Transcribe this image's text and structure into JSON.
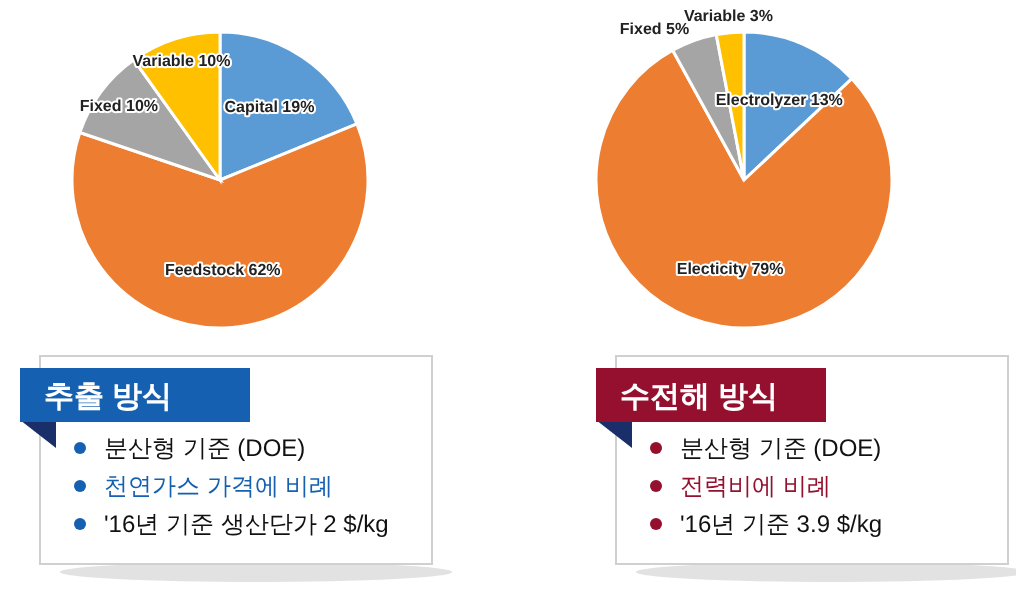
{
  "chart_data": [
    {
      "type": "pie",
      "categories": [
        "Capital",
        "Feedstock",
        "Fixed",
        "Variable"
      ],
      "values": [
        19,
        62,
        10,
        10
      ],
      "colors": [
        "#5b9bd5",
        "#ed7d31",
        "#a5a5a5",
        "#ffc000"
      ],
      "value_labels": [
        "19%",
        "62%",
        "10%",
        "10%"
      ]
    },
    {
      "type": "pie",
      "categories": [
        "Electrolyzer",
        "Electicity",
        "Fixed",
        "Variable"
      ],
      "values": [
        13,
        79,
        5,
        3
      ],
      "colors": [
        "#5b9bd5",
        "#ed7d31",
        "#a5a5a5",
        "#ffc000"
      ],
      "value_labels": [
        "13%",
        "79%",
        "5%",
        "3%"
      ]
    },
    {
      "type": "other",
      "title": "추출 방식",
      "color": "#1560b0",
      "annotations": [
        "분산형 기준 (DOE)",
        "천연가스 가격에 비례",
        "'16년 기준 생산단가 2 $/kg"
      ]
    },
    {
      "type": "other",
      "title": "수전해 방식",
      "color": "#95102e",
      "annotations": [
        "분산형 기준 (DOE)",
        "전력비에 비례",
        "'16년 기준 3.9 $/kg"
      ]
    }
  ]
}
